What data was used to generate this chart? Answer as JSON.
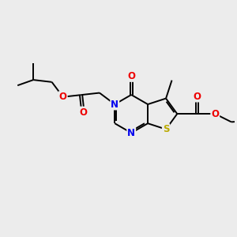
{
  "background_color": "#ececec",
  "atom_colors": {
    "C": "#000000",
    "N": "#0000ee",
    "O": "#ee0000",
    "S": "#bbaa00",
    "H": "#000000"
  },
  "bond_color": "#000000",
  "bond_width": 1.4,
  "font_size_atom": 8.5
}
